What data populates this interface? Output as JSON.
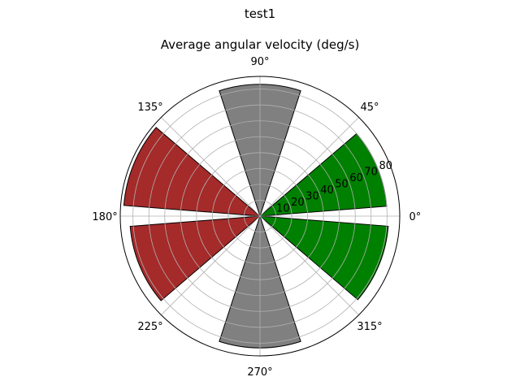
{
  "chart_data": {
    "type": "polar-bar",
    "suptitle": "test1",
    "title": "Average angular velocity (deg/s)",
    "theta_tick_labels": [
      "0°",
      "45°",
      "90°",
      "135°",
      "180°",
      "225°",
      "270°",
      "315°"
    ],
    "theta_ticks_deg": [
      0,
      45,
      90,
      135,
      180,
      225,
      270,
      315
    ],
    "r_tick_labels": [
      "10",
      "20",
      "30",
      "40",
      "50",
      "60",
      "70",
      "80"
    ],
    "r_ticks": [
      10,
      20,
      30,
      40,
      50,
      60,
      70,
      80
    ],
    "rlim": [
      0,
      88
    ],
    "grid": true,
    "bars": [
      {
        "theta_deg": 22.5,
        "width_deg": 36,
        "value": 80,
        "color": "#008000"
      },
      {
        "theta_deg": 90,
        "width_deg": 36,
        "value": 83,
        "color": "#808080"
      },
      {
        "theta_deg": 157.5,
        "width_deg": 36,
        "value": 86,
        "color": "#a52a2a"
      },
      {
        "theta_deg": 202.5,
        "width_deg": 36,
        "value": 82,
        "color": "#a52a2a"
      },
      {
        "theta_deg": 270,
        "width_deg": 36,
        "value": 83,
        "color": "#808080"
      },
      {
        "theta_deg": 337.5,
        "width_deg": 36,
        "value": 81,
        "color": "#008000"
      }
    ]
  }
}
